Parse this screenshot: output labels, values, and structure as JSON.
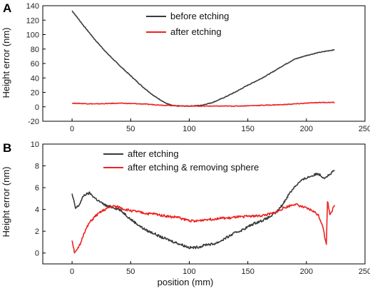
{
  "chart_data": [
    {
      "panel_label": "A",
      "type": "line",
      "xlabel": "",
      "ylabel": "Height error (nm)",
      "xlim": [
        -25,
        250
      ],
      "ylim": [
        -20,
        140
      ],
      "xticks": [
        0,
        50,
        100,
        150,
        200,
        250
      ],
      "yticks": [
        -20,
        0,
        20,
        40,
        60,
        80,
        100,
        120,
        140
      ],
      "legend_position": "top-right",
      "grid": false,
      "series": [
        {
          "name": "before etching",
          "color": "#3a3a3a",
          "x": [
            0,
            10,
            20,
            30,
            40,
            50,
            60,
            70,
            80,
            85,
            90,
            100,
            110,
            120,
            130,
            140,
            150,
            160,
            170,
            180,
            190,
            200,
            210,
            220,
            224
          ],
          "y": [
            133,
            112,
            92,
            74,
            58,
            43,
            28,
            15,
            5,
            2,
            1,
            1,
            2,
            6,
            13,
            21,
            30,
            38,
            47,
            57,
            66,
            71,
            75,
            78,
            79
          ]
        },
        {
          "name": "after etching",
          "color": "#ee2222",
          "x": [
            0,
            20,
            40,
            60,
            80,
            100,
            120,
            140,
            160,
            180,
            200,
            210,
            224
          ],
          "y": [
            5,
            4,
            5,
            4,
            2,
            1,
            1,
            1,
            2,
            3,
            5,
            6,
            6
          ]
        }
      ]
    },
    {
      "panel_label": "B",
      "type": "line",
      "xlabel": "position (mm)",
      "ylabel": "Height error (nm)",
      "xlim": [
        -25,
        250
      ],
      "ylim": [
        -1,
        10
      ],
      "xticks": [
        0,
        50,
        100,
        150,
        200,
        250
      ],
      "yticks": [
        0,
        2,
        4,
        6,
        8,
        10
      ],
      "legend_position": "top-right",
      "grid": false,
      "series": [
        {
          "name": "after etching",
          "color": "#3a3a3a",
          "x": [
            0,
            3,
            6,
            10,
            15,
            20,
            25,
            30,
            35,
            40,
            45,
            50,
            55,
            60,
            65,
            70,
            75,
            80,
            85,
            90,
            95,
            100,
            105,
            110,
            115,
            120,
            125,
            130,
            135,
            140,
            145,
            150,
            155,
            160,
            165,
            170,
            175,
            180,
            185,
            190,
            195,
            200,
            205,
            210,
            215,
            220,
            224
          ],
          "y": [
            5.4,
            4.1,
            4.4,
            5.3,
            5.5,
            5.0,
            4.6,
            4.3,
            4.2,
            4.0,
            3.6,
            3.1,
            2.7,
            2.3,
            2.0,
            1.8,
            1.5,
            1.3,
            1.1,
            0.9,
            0.7,
            0.5,
            0.5,
            0.6,
            0.8,
            0.8,
            1.0,
            1.3,
            1.6,
            1.9,
            2.1,
            2.4,
            2.7,
            2.9,
            3.1,
            3.4,
            3.8,
            4.5,
            5.4,
            6.1,
            6.6,
            6.9,
            7.1,
            7.3,
            6.9,
            7.2,
            7.6
          ]
        },
        {
          "name": "after etching & removing sphere",
          "color": "#ee2222",
          "x": [
            0,
            2,
            4,
            7,
            10,
            15,
            20,
            25,
            30,
            35,
            40,
            45,
            50,
            55,
            60,
            65,
            70,
            75,
            80,
            85,
            90,
            95,
            100,
            105,
            110,
            115,
            120,
            125,
            130,
            135,
            140,
            145,
            150,
            155,
            160,
            165,
            170,
            175,
            180,
            185,
            190,
            195,
            200,
            205,
            210,
            214,
            216,
            217,
            218,
            220,
            222,
            224
          ],
          "y": [
            1.2,
            0.1,
            0.2,
            0.8,
            1.8,
            2.8,
            3.4,
            3.8,
            4.1,
            4.3,
            4.2,
            4.0,
            3.9,
            3.8,
            3.7,
            3.6,
            3.6,
            3.5,
            3.4,
            3.3,
            3.3,
            3.1,
            3.0,
            2.9,
            3.0,
            3.1,
            3.1,
            3.2,
            3.2,
            3.2,
            3.3,
            3.3,
            3.4,
            3.4,
            3.4,
            3.5,
            3.6,
            3.8,
            4.1,
            4.3,
            4.5,
            4.3,
            4.1,
            3.9,
            3.5,
            2.5,
            1.2,
            0.9,
            4.8,
            3.6,
            3.9,
            4.4
          ]
        }
      ]
    }
  ]
}
